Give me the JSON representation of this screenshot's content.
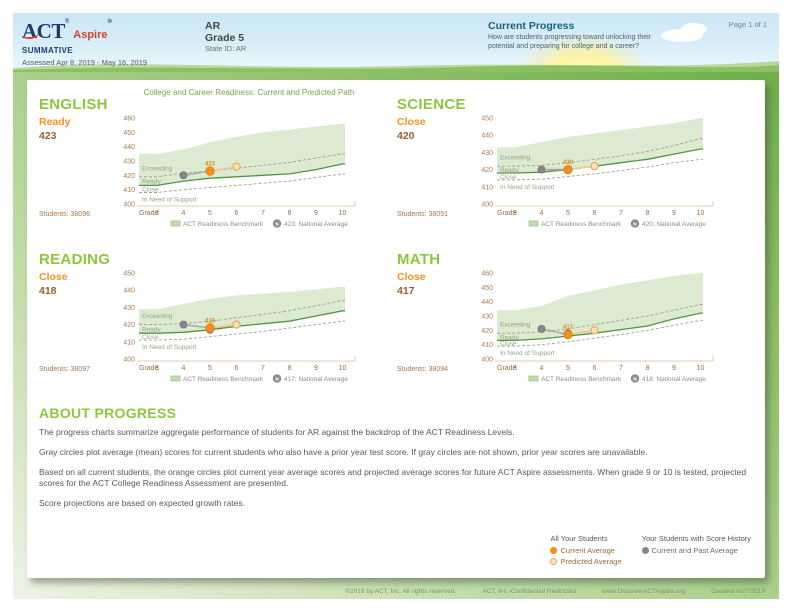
{
  "header": {
    "logo_act": "ACT",
    "logo_aspire": "Aspire",
    "report_type": "SUMMATIVE",
    "assessed": "Assessed Apr 8, 2019 - May 16, 2019",
    "org": "AR",
    "grade": "Grade 5",
    "state_id": "State ID: AR",
    "section_title": "Current Progress",
    "section_question": "How are students progressing toward unlocking their potential and preparing for college and a career?",
    "page": "Page 1 of 1"
  },
  "chart_main_title": "College and Career Readiness: Current and Predicted Path",
  "colors": {
    "accent_green": "#8dc63f",
    "level_orange": "#f6921e",
    "score_brown": "#9b5f2e",
    "benchmark_line": "#4f9643",
    "band_fill": "#dcead2",
    "dashed_line": "#95a884",
    "current_orange": "#f3901d",
    "predicted_fill": "#fbe0bb",
    "predicted_stroke": "#eda54f",
    "past_gray": "#85878a",
    "navy": "#1d3c6e",
    "aspire_red": "#e03c31",
    "header_teal": "#1b5e82"
  },
  "chart_data": [
    {
      "type": "line",
      "subject": "ENGLISH",
      "level": "Ready",
      "score": "423",
      "students_display": "Students: 38096",
      "xlabel": "Grade",
      "grades": [
        3,
        4,
        5,
        6,
        7,
        8,
        9,
        10
      ],
      "ylim": [
        400,
        460
      ],
      "yticks": [
        400,
        410,
        420,
        430,
        440,
        450,
        460
      ],
      "region_labels": [
        "Exceeding",
        "Ready",
        "Close",
        "In Need of Support"
      ],
      "series": {
        "benchmark": [
          413,
          416,
          418,
          419,
          420,
          421,
          424,
          428
        ],
        "exceed_boundary": [
          419,
          421.5,
          423,
          425,
          427,
          429,
          432,
          435
        ],
        "close_boundary": [
          408,
          410,
          411.5,
          413,
          414.5,
          416,
          418.5,
          421
        ],
        "max_score": [
          435,
          438,
          443,
          447,
          450,
          452,
          454,
          456
        ],
        "prior_avg": {
          "grade": 4,
          "value": 420
        },
        "current_avg": {
          "grade": 5,
          "value": 423
        },
        "predicted_avg": {
          "grade": 6,
          "value": 426
        },
        "national_avg": {
          "grade": 5,
          "value": 423
        }
      },
      "legend_benchmark": "ACT Readiness Benchmark",
      "legend_national": "423: National Average"
    },
    {
      "type": "line",
      "subject": "SCIENCE",
      "level": "Close",
      "score": "420",
      "students_display": "Students: 38091",
      "xlabel": "Grade",
      "grades": [
        3,
        4,
        5,
        6,
        7,
        8,
        9,
        10
      ],
      "ylim": [
        400,
        450
      ],
      "yticks": [
        400,
        410,
        420,
        430,
        440,
        450
      ],
      "region_labels": [
        "Exceeding",
        "Ready",
        "Close",
        "In Need of Support"
      ],
      "series": {
        "benchmark": [
          418,
          418.5,
          420,
          422,
          424,
          426,
          429,
          432
        ],
        "exceed_boundary": [
          422,
          422.5,
          424,
          426,
          428,
          430.5,
          434,
          438
        ],
        "close_boundary": [
          414,
          414.5,
          416,
          417.5,
          419.5,
          421.5,
          424,
          426
        ],
        "max_score": [
          433,
          436,
          439,
          441,
          443,
          445,
          447,
          450
        ],
        "prior_avg": {
          "grade": 4,
          "value": 420
        },
        "current_avg": {
          "grade": 5,
          "value": 420
        },
        "predicted_avg": {
          "grade": 6,
          "value": 422
        },
        "national_avg": {
          "grade": 5,
          "value": 420
        }
      },
      "legend_benchmark": "ACT Readiness Benchmark",
      "legend_national": "420: National Average"
    },
    {
      "type": "line",
      "subject": "READING",
      "level": "Close",
      "score": "418",
      "students_display": "Students: 38097",
      "xlabel": "Grade",
      "grades": [
        3,
        4,
        5,
        6,
        7,
        8,
        9,
        10
      ],
      "ylim": [
        400,
        450
      ],
      "yticks": [
        400,
        410,
        420,
        430,
        440,
        450
      ],
      "region_labels": [
        "Exceeding",
        "Ready",
        "Close",
        "In Need of Support"
      ],
      "series": {
        "benchmark": [
          415,
          415.5,
          417,
          419,
          420.5,
          422,
          425,
          428
        ],
        "exceed_boundary": [
          420,
          420.5,
          422,
          424,
          426,
          428,
          431,
          434
        ],
        "close_boundary": [
          411,
          411.5,
          413,
          414.5,
          416,
          418,
          420,
          422
        ],
        "max_score": [
          429,
          432,
          435,
          437,
          438,
          439,
          440.5,
          442
        ],
        "prior_avg": {
          "grade": 4,
          "value": 420
        },
        "current_avg": {
          "grade": 5,
          "value": 418
        },
        "predicted_avg": {
          "grade": 6,
          "value": 420
        },
        "national_avg": {
          "grade": 5,
          "value": 417
        }
      },
      "legend_benchmark": "ACT Readiness Benchmark",
      "legend_national": "417: National Average"
    },
    {
      "type": "line",
      "subject": "MATH",
      "level": "Close",
      "score": "417",
      "students_display": "Students: 38094",
      "xlabel": "Grade",
      "grades": [
        3,
        4,
        5,
        6,
        7,
        8,
        9,
        10
      ],
      "ylim": [
        400,
        460
      ],
      "yticks": [
        400,
        410,
        420,
        430,
        440,
        450,
        460
      ],
      "region_labels": [
        "Exceeding",
        "Ready",
        "Close",
        "In Need of Support"
      ],
      "series": {
        "benchmark": [
          413,
          414,
          416,
          418,
          420.5,
          423,
          428,
          432
        ],
        "exceed_boundary": [
          418,
          419,
          421,
          424,
          427,
          430,
          434,
          438
        ],
        "close_boundary": [
          409,
          410,
          412,
          414.5,
          417,
          420,
          423.5,
          427
        ],
        "max_score": [
          434,
          437,
          444,
          448,
          452,
          455,
          458,
          460
        ],
        "prior_avg": {
          "grade": 4,
          "value": 421
        },
        "current_avg": {
          "grade": 5,
          "value": 417
        },
        "predicted_avg": {
          "grade": 6,
          "value": 420
        },
        "national_avg": {
          "grade": 5,
          "value": 418
        }
      },
      "legend_benchmark": "ACT Readiness Benchmark",
      "legend_national": "418: National Average"
    }
  ],
  "about": {
    "title": "ABOUT PROGRESS",
    "paragraphs": [
      "The progress charts summarize aggregate performance of students for AR against the backdrop of the ACT Readiness Levels.",
      "Gray circles plot average (mean) scores for current students who also have a prior year test score. If gray circles are not shown, prior year scores are unavailable.",
      "Based on all current students, the orange circles plot current year average scores and projected average scores for future ACT Aspire assessments. When grade 9 or 10 is tested, projected scores for the ACT College Readiness Assessment are presented.",
      "Score projections are based on expected growth rates."
    ]
  },
  "bottom_legend": {
    "all_students_title": "All Your Students",
    "current_label": "Current Average",
    "predicted_label": "Predicted Average",
    "history_title": "Your Students with Score History",
    "past_label": "Current and Past Average"
  },
  "footer": {
    "copyright": "©2019 by ACT, Inc. All rights reserved.",
    "confidential": "ACT, Inc.-Confidential Restricted",
    "url": "www.DiscoverACTAspire.org",
    "created": "Created 6/27/2019"
  }
}
